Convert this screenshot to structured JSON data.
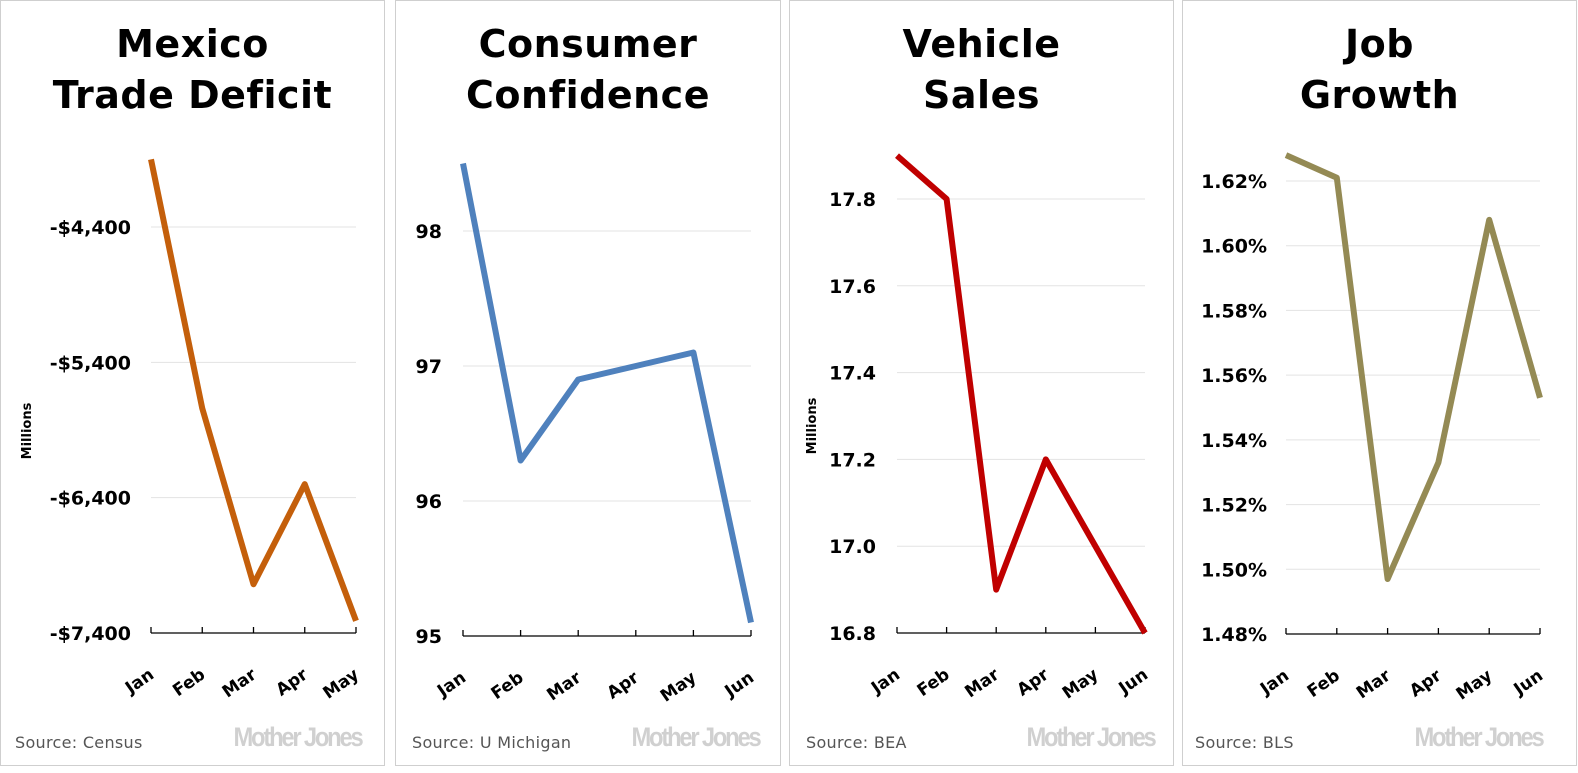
{
  "branding": {
    "watermark": "Mother Jones"
  },
  "chart_data": [
    {
      "type": "line",
      "title": "Mexico Trade Deficit",
      "title_lines": [
        "Mexico",
        "Trade Deficit"
      ],
      "ylabel": "Millions",
      "xlabel": "",
      "categories": [
        "Jan",
        "Feb",
        "Mar",
        "Apr",
        "May"
      ],
      "values": [
        -3900,
        -5740,
        -7040,
        -6300,
        -7310
      ],
      "ylim": [
        -7400,
        -3900
      ],
      "yticks": [
        -7400,
        -6400,
        -5400,
        -4400
      ],
      "ytick_labels": [
        "-$7,400",
        "-$6,400",
        "-$5,400",
        "-$4,400"
      ],
      "grid": true,
      "color": "#c45f0b",
      "source": "Source:  Census"
    },
    {
      "type": "line",
      "title": "Consumer Confidence",
      "title_lines": [
        "Consumer",
        "Confidence"
      ],
      "ylabel": "",
      "xlabel": "",
      "categories": [
        "Jan",
        "Feb",
        "Mar",
        "Apr",
        "May",
        "Jun"
      ],
      "values": [
        98.5,
        96.3,
        96.9,
        97.0,
        97.1,
        95.1
      ],
      "ylim": [
        95,
        98.5
      ],
      "yticks": [
        95,
        96,
        97,
        98
      ],
      "ytick_labels": [
        "95",
        "96",
        "97",
        "98"
      ],
      "grid": true,
      "color": "#4f81bd",
      "source": "Source:  U Michigan"
    },
    {
      "type": "line",
      "title": "Vehicle Sales",
      "title_lines": [
        "Vehicle",
        "Sales"
      ],
      "ylabel": "Millions",
      "xlabel": "",
      "categories": [
        "Jan",
        "Feb",
        "Mar",
        "Apr",
        "May",
        "Jun"
      ],
      "values": [
        17.9,
        17.8,
        16.9,
        17.2,
        17.0,
        16.8
      ],
      "ylim": [
        16.8,
        17.9
      ],
      "yticks": [
        16.8,
        17.0,
        17.2,
        17.4,
        17.6,
        17.8
      ],
      "ytick_labels": [
        "16.8",
        "17.0",
        "17.2",
        "17.4",
        "17.6",
        "17.8"
      ],
      "grid": true,
      "color": "#c00000",
      "source": "Source:  BEA"
    },
    {
      "type": "line",
      "title": "Job Growth",
      "title_lines": [
        "Job",
        "Growth"
      ],
      "ylabel": "",
      "xlabel": "",
      "categories": [
        "Jan",
        "Feb",
        "Mar",
        "Apr",
        "May",
        "Jun"
      ],
      "values": [
        1.628,
        1.621,
        1.497,
        1.533,
        1.608,
        1.553
      ],
      "ylim": [
        1.48,
        1.628
      ],
      "yticks": [
        1.48,
        1.5,
        1.52,
        1.54,
        1.56,
        1.58,
        1.6,
        1.62
      ],
      "ytick_labels": [
        "1.48%",
        "1.50%",
        "1.52%",
        "1.54%",
        "1.56%",
        "1.58%",
        "1.60%",
        "1.62%"
      ],
      "grid": true,
      "color": "#948a54",
      "source": "Source:  BLS"
    }
  ]
}
